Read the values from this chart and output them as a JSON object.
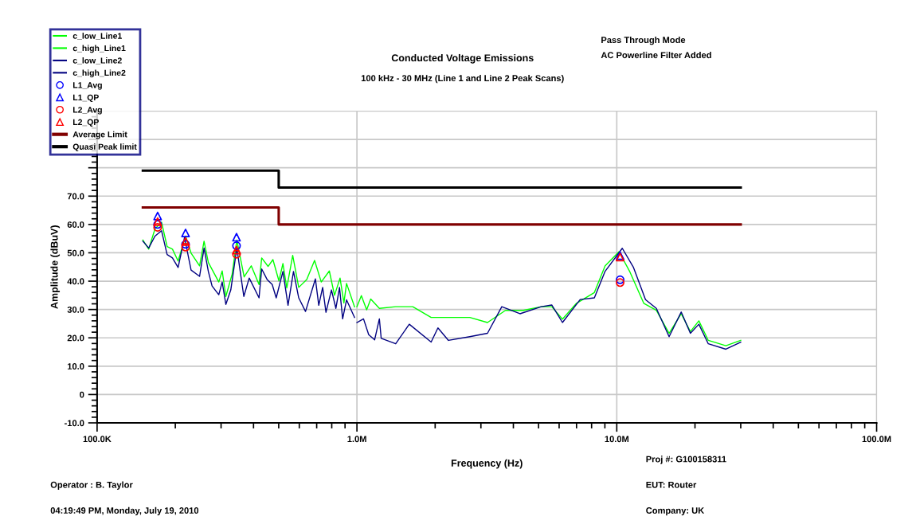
{
  "chart_data": {
    "type": "line",
    "title": "Conducted Voltage Emissions",
    "subtitle": "100 kHz - 30 MHz (Line 1 and Line 2 Peak Scans)",
    "xlabel": "Frequency (Hz)",
    "ylabel": "Amplitude (dBuV)",
    "annotations": [
      "Pass Through Mode",
      "AC Powerline Filter Added",
      "Proj #: G100158311",
      "EUT: Router",
      "Company: UK",
      "Operator : B. Taylor",
      "04:19:49 PM, Monday, July 19, 2010"
    ],
    "log": "x",
    "grid": true,
    "legend": "top left",
    "line_style": "solid",
    "xlim": [
      100000,
      100000000
    ],
    "xticks": [
      {
        "value": 100000,
        "label": "100.0K"
      },
      {
        "value": 1000000,
        "label": "1.0M"
      },
      {
        "value": 10000000,
        "label": "10.0M"
      },
      {
        "value": 100000000,
        "label": "100.0M"
      }
    ],
    "ylim": [
      -10,
      100
    ],
    "yticks": [
      {
        "value": -10,
        "label": "-10.0"
      },
      0,
      {
        "value": 10,
        "label": "10.0"
      },
      {
        "value": 20,
        "label": "20.0"
      },
      {
        "value": 30,
        "label": "30.0"
      },
      {
        "value": 40,
        "label": "40.0"
      },
      {
        "value": 50,
        "label": "50.0"
      },
      {
        "value": 60,
        "label": "60.0"
      },
      {
        "value": 70,
        "label": "70.0"
      },
      {
        "value": 80,
        "label": null
      },
      {
        "value": 90,
        "label": null
      },
      {
        "value": 100,
        "label": null
      }
    ],
    "series": [
      {
        "name": "c_low_Line1",
        "color": "#00ff00",
        "x": [
          150000,
          158000,
          167000,
          177000,
          186000,
          195000,
          205000,
          219000,
          230000,
          248000,
          258000,
          268000,
          294000,
          303000,
          313000,
          331000,
          345000,
          368000,
          392000,
          420000,
          430000,
          455000,
          475000,
          501000,
          519000,
          537000,
          566000,
          597000,
          641000,
          687000,
          729000,
          783000,
          820000,
          861000,
          891000,
          912000,
          979000
        ],
        "values": [
          54.5,
          51.3,
          58.4,
          60.8,
          52.2,
          51.3,
          47.1,
          55.9,
          49.9,
          45.4,
          54.1,
          46.6,
          39.7,
          43.6,
          34.6,
          42.5,
          54.5,
          41.5,
          45.4,
          38.8,
          48.2,
          45.2,
          47.6,
          40.1,
          46.2,
          37.6,
          49.1,
          37.8,
          40.6,
          47.3,
          39.7,
          43.6,
          35.0,
          41.1,
          32.3,
          39.2,
          30.9
        ]
      },
      {
        "name": "c_high_Line1",
        "color": "#00ff00",
        "x": [
          1000000,
          1040000,
          1090000,
          1130000,
          1220000,
          1410000,
          1640000,
          1930000,
          2250000,
          2720000,
          3180000,
          3730000,
          4370000,
          5120000,
          5620000,
          6180000,
          7000000,
          8200000,
          9020000,
          10200000,
          11200000,
          12700000,
          14200000,
          15900000,
          17700000,
          19200000,
          20700000,
          22500000,
          26300000,
          30000000
        ],
        "values": [
          31,
          34.9,
          29.9,
          33.7,
          30.4,
          31,
          31,
          27.2,
          27.2,
          27.2,
          25.4,
          29.7,
          29.7,
          31,
          31,
          26.6,
          32.2,
          36,
          45.4,
          50.4,
          43.5,
          32.2,
          29.7,
          21.6,
          28.5,
          22.2,
          26,
          19.1,
          17.2,
          19.1
        ]
      },
      {
        "name": "c_low_Line2",
        "color": "#000080",
        "x": [
          150000,
          158000,
          167000,
          177000,
          186000,
          195000,
          205000,
          217000,
          230000,
          248000,
          258000,
          268000,
          277000,
          294000,
          303000,
          313000,
          327000,
          345000,
          367000,
          385000,
          420000,
          430000,
          451000,
          472000,
          489000,
          519000,
          543000,
          570000,
          597000,
          634000,
          692000,
          713000,
          738000,
          760000,
          798000,
          830000,
          857000,
          881000,
          912000,
          979000
        ],
        "values": [
          54.1,
          51.7,
          55.9,
          57.8,
          49.4,
          48.2,
          44.8,
          55.4,
          43.9,
          41.7,
          51.7,
          43.4,
          38.3,
          35.2,
          39.7,
          31.8,
          36.9,
          51.7,
          34.6,
          41.1,
          34.1,
          44.3,
          40.6,
          38.8,
          34.1,
          43.4,
          31.5,
          43.4,
          34.1,
          29.3,
          40.8,
          31.5,
          37.8,
          29.0,
          36.9,
          30.4,
          37.8,
          26.7,
          33.4,
          27.2
        ]
      },
      {
        "name": "c_high_Line2",
        "color": "#000080",
        "x": [
          1000000,
          1060000,
          1110000,
          1170000,
          1220000,
          1240000,
          1410000,
          1590000,
          1930000,
          2050000,
          2250000,
          2720000,
          3180000,
          3610000,
          4240000,
          5120000,
          5620000,
          6180000,
          7230000,
          8200000,
          9020000,
          10500000,
          11600000,
          12900000,
          14200000,
          15900000,
          17700000,
          19200000,
          20700000,
          22500000,
          26300000,
          30000000
        ],
        "values": [
          25.4,
          26.7,
          21.1,
          19.3,
          26.7,
          19.8,
          17.9,
          24.8,
          18.5,
          23.5,
          19.1,
          20.4,
          21.6,
          31,
          28.5,
          31,
          31.6,
          25.4,
          33.5,
          34.1,
          43.5,
          51.6,
          44.8,
          33.5,
          30.4,
          20.4,
          29.1,
          21.6,
          24.8,
          17.9,
          16,
          18.5
        ]
      },
      {
        "name": "L1_Avg",
        "type": "scatter",
        "marker": "circle",
        "color": "#0000ff",
        "x": [
          171000,
          219000,
          344000,
          10300000
        ],
        "values": [
          60,
          53,
          52.5,
          40.5
        ]
      },
      {
        "name": "L1_QP",
        "type": "scatter",
        "marker": "triangle",
        "color": "#0000ff",
        "x": [
          171000,
          219000,
          344000,
          10300000
        ],
        "values": [
          63,
          57,
          55.5,
          49
        ]
      },
      {
        "name": "L2_Avg",
        "type": "scatter",
        "marker": "circle",
        "color": "#ff0000",
        "x": [
          171000,
          219000,
          344000,
          10300000
        ],
        "values": [
          59,
          52,
          49.5,
          39.5
        ]
      },
      {
        "name": "L2_QP",
        "type": "scatter",
        "marker": "triangle",
        "color": "#ff0000",
        "x": [
          171000,
          219000,
          344000,
          10300000
        ],
        "values": [
          61,
          54,
          51,
          48.5
        ]
      },
      {
        "name": "Average Limit",
        "color": "#800000",
        "x": [
          150000,
          500000,
          500000,
          30000000
        ],
        "values": [
          66,
          66,
          60,
          60
        ]
      },
      {
        "name": "Quasi Peak limit",
        "color": "#000000",
        "x": [
          150000,
          500000,
          500000,
          30000000
        ],
        "values": [
          79,
          79,
          73,
          73
        ]
      }
    ]
  }
}
